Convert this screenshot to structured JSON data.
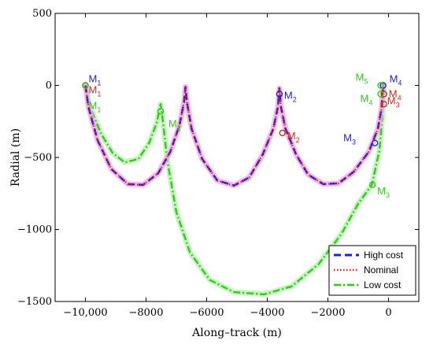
{
  "chart_data": {
    "type": "line",
    "xlabel": "Along–track (m)",
    "ylabel": "Radial (m)",
    "xlim": [
      -11000,
      1000
    ],
    "ylim": [
      -1500,
      500
    ],
    "x_ticks": [
      -10000,
      -8000,
      -6000,
      -4000,
      -2000,
      0
    ],
    "x_tick_labels": [
      "−10,000",
      "−8000",
      "−6000",
      "−4000",
      "−2000",
      "0"
    ],
    "y_ticks": [
      -1500,
      -1000,
      -500,
      0,
      500
    ],
    "y_tick_labels": [
      "−1500",
      "−1000",
      "−500",
      "0",
      "500"
    ],
    "grid": false,
    "legend_position": "bottom-right",
    "colors": {
      "high": "#1f1fd6",
      "nominal": "#d42a1a",
      "low": "#35c81f",
      "high_glow": "#f2a8f0",
      "low_glow": "#b9f3b0"
    },
    "series": [
      {
        "name": "High cost",
        "style": "dashed",
        "points": [
          [
            -10000,
            0
          ],
          [
            -9900,
            -150
          ],
          [
            -9600,
            -380
          ],
          [
            -9150,
            -580
          ],
          [
            -8600,
            -685
          ],
          [
            -8100,
            -690
          ],
          [
            -7600,
            -610
          ],
          [
            -7200,
            -460
          ],
          [
            -6900,
            -280
          ],
          [
            -6750,
            -120
          ],
          [
            -6700,
            -10
          ],
          [
            -6650,
            -120
          ],
          [
            -6500,
            -300
          ],
          [
            -6150,
            -510
          ],
          [
            -5650,
            -660
          ],
          [
            -5100,
            -695
          ],
          [
            -4600,
            -640
          ],
          [
            -4150,
            -480
          ],
          [
            -3800,
            -300
          ],
          [
            -3650,
            -150
          ],
          [
            -3600,
            -20
          ],
          [
            -3550,
            -150
          ],
          [
            -3400,
            -300
          ],
          [
            -3050,
            -480
          ],
          [
            -2650,
            -620
          ],
          [
            -2150,
            -685
          ],
          [
            -1650,
            -680
          ],
          [
            -1150,
            -600
          ],
          [
            -650,
            -460
          ],
          [
            -350,
            -300
          ],
          [
            -230,
            -160
          ],
          [
            -180,
            0
          ]
        ]
      },
      {
        "name": "Nominal",
        "style": "dotted",
        "points": [
          [
            -10000,
            0
          ],
          [
            -9900,
            -150
          ],
          [
            -9600,
            -380
          ],
          [
            -9150,
            -580
          ],
          [
            -8600,
            -685
          ],
          [
            -8100,
            -690
          ],
          [
            -7600,
            -610
          ],
          [
            -7200,
            -460
          ],
          [
            -6900,
            -280
          ],
          [
            -6750,
            -120
          ],
          [
            -6700,
            -10
          ],
          [
            -6650,
            -120
          ],
          [
            -6500,
            -300
          ],
          [
            -6150,
            -510
          ],
          [
            -5650,
            -660
          ],
          [
            -5100,
            -695
          ],
          [
            -4600,
            -640
          ],
          [
            -4150,
            -480
          ],
          [
            -3800,
            -300
          ],
          [
            -3650,
            -150
          ],
          [
            -3600,
            -20
          ],
          [
            -3550,
            -150
          ],
          [
            -3400,
            -300
          ],
          [
            -3050,
            -480
          ],
          [
            -2650,
            -620
          ],
          [
            -2150,
            -685
          ],
          [
            -1650,
            -680
          ],
          [
            -1150,
            -600
          ],
          [
            -650,
            -460
          ],
          [
            -350,
            -300
          ],
          [
            -230,
            -160
          ],
          [
            -180,
            0
          ]
        ]
      },
      {
        "name": "Low cost",
        "style": "dashdot",
        "points": [
          [
            -10000,
            0
          ],
          [
            -9850,
            -150
          ],
          [
            -9500,
            -330
          ],
          [
            -9100,
            -470
          ],
          [
            -8700,
            -535
          ],
          [
            -8250,
            -510
          ],
          [
            -7900,
            -400
          ],
          [
            -7650,
            -260
          ],
          [
            -7520,
            -130
          ],
          [
            -7450,
            -240
          ],
          [
            -7300,
            -520
          ],
          [
            -7000,
            -880
          ],
          [
            -6550,
            -1160
          ],
          [
            -5900,
            -1350
          ],
          [
            -5100,
            -1435
          ],
          [
            -4100,
            -1450
          ],
          [
            -3200,
            -1395
          ],
          [
            -2300,
            -1240
          ],
          [
            -1550,
            -1030
          ],
          [
            -1000,
            -820
          ],
          [
            -550,
            -690
          ],
          [
            -300,
            -450
          ],
          [
            -200,
            -200
          ],
          [
            -160,
            -40
          ],
          [
            -150,
            0
          ]
        ]
      }
    ],
    "markers": [
      {
        "label": "M",
        "sub": "1",
        "color": "#1f1fd6",
        "x": -10000,
        "y": 0,
        "dx": 4,
        "dy": -4
      },
      {
        "label": "M",
        "sub": "1",
        "color": "#d42a1a",
        "x": -10000,
        "y": 0,
        "dx": 4,
        "dy": 10
      },
      {
        "label": "M",
        "sub": "1",
        "color": "#35c81f",
        "x": -10000,
        "y": 0,
        "dx": 4,
        "dy": 30
      },
      {
        "label": "M",
        "sub": "2",
        "color": "#35c81f",
        "x": -7520,
        "y": -180,
        "dx": 10,
        "dy": 20
      },
      {
        "label": "M",
        "sub": "2",
        "color": "#1f1fd6",
        "x": -3600,
        "y": -60,
        "dx": 6,
        "dy": 6
      },
      {
        "label": "M",
        "sub": "2",
        "color": "#d42a1a",
        "x": -3500,
        "y": -330,
        "dx": 6,
        "dy": 8
      },
      {
        "label": "M",
        "sub": "3",
        "color": "#1f1fd6",
        "x": -450,
        "y": -400,
        "dx": -40,
        "dy": -2
      },
      {
        "label": "M",
        "sub": "3",
        "color": "#35c81f",
        "x": -530,
        "y": -690,
        "dx": 6,
        "dy": 12
      },
      {
        "label": "M",
        "sub": "3",
        "color": "#d42a1a",
        "x": -150,
        "y": -130,
        "dx": 4,
        "dy": 0
      },
      {
        "label": "M",
        "sub": "4",
        "color": "#1f1fd6",
        "x": -180,
        "y": 0,
        "dx": 8,
        "dy": -4
      },
      {
        "label": "M",
        "sub": "4",
        "color": "#d42a1a",
        "x": -150,
        "y": -60,
        "dx": 6,
        "dy": 4
      },
      {
        "label": "M",
        "sub": "4",
        "color": "#35c81f",
        "x": -260,
        "y": -60,
        "dx": -26,
        "dy": 10
      },
      {
        "label": "M",
        "sub": "5",
        "color": "#35c81f",
        "x": -260,
        "y": 0,
        "dx": -32,
        "dy": -6
      }
    ]
  }
}
